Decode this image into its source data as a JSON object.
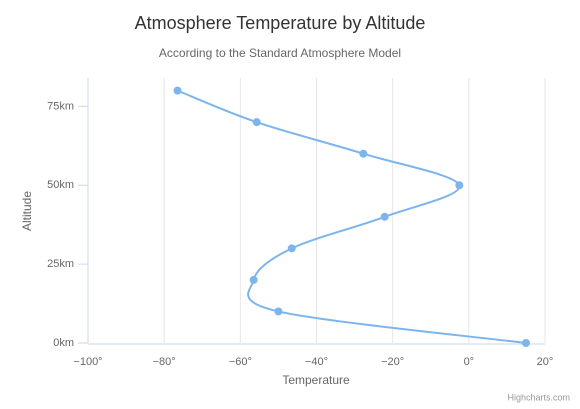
{
  "chart_data": {
    "type": "spline",
    "inverted": true,
    "title": "Atmosphere Temperature by Altitude",
    "subtitle": "According to the Standard Atmosphere Model",
    "x_label": "Altitude",
    "y_label": "Temperature",
    "credits": "Highcharts.com",
    "x": [
      0,
      10,
      20,
      30,
      40,
      50,
      60,
      70,
      80
    ],
    "series": [
      {
        "name": "Temperature",
        "color": "#7cb5ec",
        "values": [
          15,
          -50,
          -56.5,
          -46.5,
          -22.1,
          -2.5,
          -27.7,
          -55.7,
          -76.5
        ]
      }
    ],
    "xlim": [
      0,
      84
    ],
    "xticks": [
      {
        "value": 0,
        "label": "0km"
      },
      {
        "value": 25,
        "label": "25km"
      },
      {
        "value": 50,
        "label": "50km"
      },
      {
        "value": 75,
        "label": "75km"
      }
    ],
    "ylim": [
      -100,
      20
    ],
    "yticks": [
      {
        "value": -100,
        "label": "−100°"
      },
      {
        "value": -80,
        "label": "−80°"
      },
      {
        "value": -60,
        "label": "−60°"
      },
      {
        "value": -40,
        "label": "−40°"
      },
      {
        "value": -20,
        "label": "−20°"
      },
      {
        "value": 0,
        "label": "0°"
      },
      {
        "value": 20,
        "label": "20°"
      }
    ],
    "grid": true
  }
}
